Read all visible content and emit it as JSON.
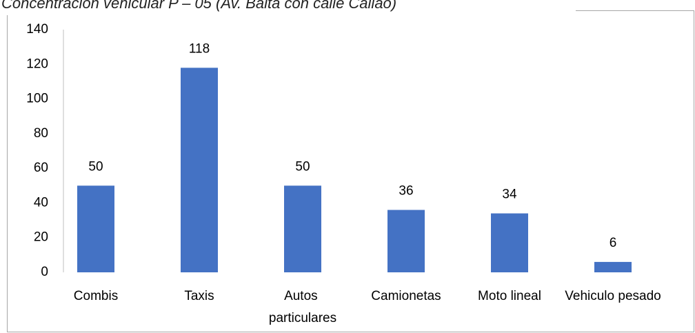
{
  "chart_data": {
    "type": "bar",
    "title": "Concentración vehicular P – 05 (Av. Balta con calle Callao)",
    "categories": [
      "Combis",
      "Taxis",
      "Autos particulares",
      "Camionetas",
      "Moto lineal",
      "Vehiculo pesado"
    ],
    "values": [
      50,
      118,
      50,
      36,
      34,
      6
    ],
    "color": "#4472c4",
    "ylim": [
      0,
      140
    ],
    "yticks": [
      0,
      20,
      40,
      60,
      80,
      100,
      120,
      140
    ],
    "grid": false
  }
}
